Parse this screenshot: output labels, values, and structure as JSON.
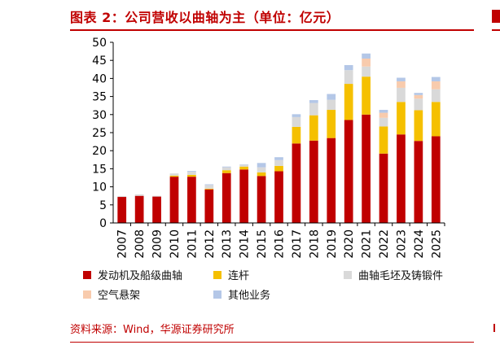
{
  "header": {
    "title": "图表 2：公司营收以曲轴为主（单位：亿元）"
  },
  "footer": {
    "source": "资料来源：Wind，华源证券研究所"
  },
  "chart_data": {
    "type": "bar",
    "stacked": true,
    "categories": [
      "2007",
      "2008",
      "2009",
      "2010",
      "2011",
      "2012",
      "2013",
      "2014",
      "2015",
      "2016",
      "2017",
      "2018",
      "2019",
      "2020",
      "2021",
      "2022",
      "2023",
      "2024",
      "2025"
    ],
    "series": [
      {
        "name": "发动机及船级曲轴",
        "color": "#c00000",
        "values": [
          7.2,
          7.5,
          7.3,
          12.8,
          12.8,
          9.3,
          13.8,
          14.8,
          13.0,
          14.3,
          22.0,
          22.8,
          23.5,
          28.5,
          30.0,
          19.2,
          24.5,
          22.7,
          24.0
        ]
      },
      {
        "name": "连杆",
        "color": "#f5c000",
        "values": [
          0,
          0,
          0,
          0.3,
          0.5,
          0.2,
          0.8,
          0.8,
          1.0,
          1.5,
          4.6,
          7.0,
          7.8,
          10.0,
          10.5,
          7.5,
          9.0,
          8.5,
          9.5
        ]
      },
      {
        "name": "曲轴毛坯及铸锻件",
        "color": "#d9d9d9",
        "values": [
          0.2,
          0.4,
          0.2,
          0.6,
          0.9,
          1.0,
          0.8,
          0.5,
          1.4,
          1.6,
          2.7,
          3.4,
          2.8,
          3.8,
          2.8,
          2.4,
          3.9,
          3.2,
          3.5
        ]
      },
      {
        "name": "空气悬架",
        "color": "#f8cbad",
        "values": [
          0,
          0,
          0,
          0,
          0,
          0,
          0,
          0,
          0,
          0,
          0,
          0,
          0,
          0,
          2.2,
          1.4,
          1.8,
          1.0,
          2.2
        ]
      },
      {
        "name": "其他业务",
        "color": "#b4c7e7",
        "values": [
          0,
          0,
          0,
          0,
          0.2,
          0.2,
          0.2,
          0.1,
          1.2,
          0.8,
          0.8,
          0.8,
          1.6,
          1.4,
          1.4,
          0.8,
          1.0,
          0.6,
          1.2
        ]
      }
    ],
    "ylim": [
      0,
      50
    ],
    "yticks": [
      0,
      5,
      10,
      15,
      20,
      25,
      30,
      35,
      40,
      45,
      50
    ],
    "grid": false,
    "legend_position": "bottom"
  }
}
